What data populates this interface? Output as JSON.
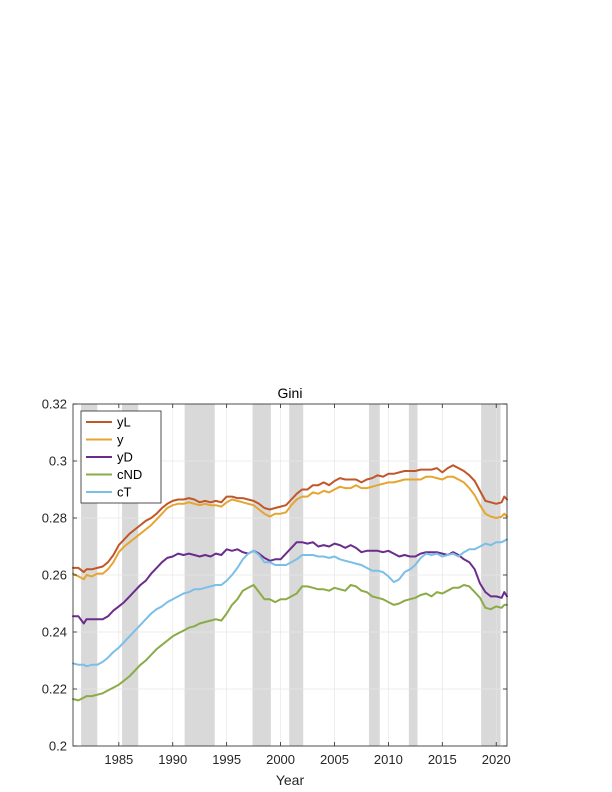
{
  "chart_data": {
    "type": "line",
    "title": "Gini",
    "xlabel": "Year",
    "ylabel": "",
    "xlim": [
      1980.75,
      2021
    ],
    "ylim": [
      0.2,
      0.32
    ],
    "xticks": [
      1985,
      1990,
      1995,
      2000,
      2005,
      2010,
      2015,
      2020
    ],
    "xtick_labels": [
      "1985",
      "1990",
      "1995",
      "2000",
      "2005",
      "2010",
      "2015",
      "2020"
    ],
    "yticks": [
      0.2,
      0.22,
      0.24,
      0.26,
      0.28,
      0.3,
      0.32
    ],
    "ytick_labels": [
      "0.2",
      "0.22",
      "0.24",
      "0.26",
      "0.28",
      "0.3",
      "0.32"
    ],
    "grid": true,
    "legend_position": "top-left",
    "recession_shading_color": "#d9d9d9",
    "recessions": [
      [
        1981.5,
        1983.0
      ],
      [
        1985.3,
        1986.8
      ],
      [
        1991.1,
        1993.9
      ],
      [
        1997.4,
        1999.1
      ],
      [
        2000.8,
        2002.1
      ],
      [
        2008.2,
        2009.2
      ],
      [
        2011.9,
        2012.7
      ],
      [
        2018.6,
        2020.4
      ]
    ],
    "series": [
      {
        "name": "yL",
        "color": "#c0572a",
        "x": [
          1980.75,
          1981.25,
          1981.75,
          1982.0,
          1982.5,
          1983.0,
          1983.5,
          1984.0,
          1984.5,
          1985.0,
          1985.5,
          1986.0,
          1986.5,
          1987.0,
          1987.5,
          1988.0,
          1988.5,
          1989.0,
          1989.5,
          1990.0,
          1990.5,
          1991.0,
          1991.5,
          1992.0,
          1992.5,
          1993.0,
          1993.5,
          1994.0,
          1994.5,
          1995.0,
          1995.5,
          1996.0,
          1996.5,
          1997.0,
          1997.5,
          1998.0,
          1998.5,
          1999.0,
          1999.5,
          2000.0,
          2000.5,
          2001.0,
          2001.5,
          2002.0,
          2002.5,
          2003.0,
          2003.5,
          2004.0,
          2004.5,
          2005.0,
          2005.5,
          2006.0,
          2006.5,
          2007.0,
          2007.5,
          2008.0,
          2008.5,
          2009.0,
          2009.5,
          2010.0,
          2010.5,
          2011.0,
          2011.5,
          2012.0,
          2012.5,
          2013.0,
          2013.5,
          2014.0,
          2014.5,
          2015.0,
          2015.5,
          2016.0,
          2016.5,
          2017.0,
          2017.5,
          2018.0,
          2018.5,
          2019.0,
          2019.5,
          2020.0,
          2020.5,
          2020.75,
          2021.0
        ],
        "values": [
          0.2625,
          0.2625,
          0.261,
          0.262,
          0.262,
          0.2625,
          0.263,
          0.2645,
          0.267,
          0.2705,
          0.2725,
          0.2745,
          0.276,
          0.2775,
          0.279,
          0.28,
          0.2815,
          0.2835,
          0.285,
          0.286,
          0.2865,
          0.2865,
          0.287,
          0.2865,
          0.2855,
          0.286,
          0.2855,
          0.286,
          0.2855,
          0.2875,
          0.2875,
          0.287,
          0.287,
          0.2865,
          0.286,
          0.285,
          0.2835,
          0.283,
          0.2835,
          0.284,
          0.2845,
          0.2865,
          0.2885,
          0.29,
          0.29,
          0.2915,
          0.2915,
          0.2925,
          0.2915,
          0.293,
          0.294,
          0.2935,
          0.2935,
          0.2935,
          0.2925,
          0.2935,
          0.294,
          0.295,
          0.2945,
          0.2955,
          0.2955,
          0.296,
          0.2965,
          0.2965,
          0.2965,
          0.297,
          0.297,
          0.297,
          0.2975,
          0.296,
          0.2975,
          0.2985,
          0.2975,
          0.2965,
          0.295,
          0.293,
          0.2895,
          0.286,
          0.2855,
          0.285,
          0.2855,
          0.2875,
          0.2865
        ]
      },
      {
        "name": "y",
        "color": "#e6a531",
        "x": [
          1980.75,
          1981.25,
          1981.75,
          1982.0,
          1982.5,
          1983.0,
          1983.5,
          1984.0,
          1984.5,
          1985.0,
          1985.5,
          1986.0,
          1986.5,
          1987.0,
          1987.5,
          1988.0,
          1988.5,
          1989.0,
          1989.5,
          1990.0,
          1990.5,
          1991.0,
          1991.5,
          1992.0,
          1992.5,
          1993.0,
          1993.5,
          1994.0,
          1994.5,
          1995.0,
          1995.5,
          1996.0,
          1996.5,
          1997.0,
          1997.5,
          1998.0,
          1998.5,
          1999.0,
          1999.5,
          2000.0,
          2000.5,
          2001.0,
          2001.5,
          2002.0,
          2002.5,
          2003.0,
          2003.5,
          2004.0,
          2004.5,
          2005.0,
          2005.5,
          2006.0,
          2006.5,
          2007.0,
          2007.5,
          2008.0,
          2008.5,
          2009.0,
          2009.5,
          2010.0,
          2010.5,
          2011.0,
          2011.5,
          2012.0,
          2012.5,
          2013.0,
          2013.5,
          2014.0,
          2014.5,
          2015.0,
          2015.5,
          2016.0,
          2016.5,
          2017.0,
          2017.5,
          2018.0,
          2018.5,
          2019.0,
          2019.5,
          2020.0,
          2020.5,
          2020.75,
          2021.0
        ],
        "values": [
          0.2605,
          0.2595,
          0.2585,
          0.26,
          0.2595,
          0.2605,
          0.2605,
          0.262,
          0.2645,
          0.268,
          0.27,
          0.2715,
          0.273,
          0.2745,
          0.276,
          0.2775,
          0.2795,
          0.2815,
          0.2835,
          0.2845,
          0.285,
          0.285,
          0.2855,
          0.285,
          0.2845,
          0.285,
          0.2845,
          0.2845,
          0.284,
          0.2855,
          0.2865,
          0.286,
          0.2855,
          0.285,
          0.2845,
          0.283,
          0.2815,
          0.2805,
          0.2815,
          0.2815,
          0.282,
          0.2845,
          0.2865,
          0.2875,
          0.2875,
          0.289,
          0.2885,
          0.2895,
          0.289,
          0.29,
          0.291,
          0.2905,
          0.2905,
          0.2915,
          0.2905,
          0.2905,
          0.291,
          0.2915,
          0.292,
          0.2925,
          0.2925,
          0.293,
          0.2935,
          0.2935,
          0.2935,
          0.2935,
          0.2945,
          0.2945,
          0.294,
          0.2935,
          0.2945,
          0.2945,
          0.2935,
          0.2925,
          0.2905,
          0.288,
          0.2845,
          0.2815,
          0.2805,
          0.28,
          0.2805,
          0.2815,
          0.2805
        ]
      },
      {
        "name": "yD",
        "color": "#6b2d8b",
        "x": [
          1980.75,
          1981.25,
          1981.75,
          1982.0,
          1982.5,
          1983.0,
          1983.5,
          1984.0,
          1984.5,
          1985.0,
          1985.5,
          1986.0,
          1986.5,
          1987.0,
          1987.5,
          1988.0,
          1988.5,
          1989.0,
          1989.5,
          1990.0,
          1990.5,
          1991.0,
          1991.5,
          1992.0,
          1992.5,
          1993.0,
          1993.5,
          1994.0,
          1994.5,
          1995.0,
          1995.5,
          1996.0,
          1996.5,
          1997.0,
          1997.5,
          1998.0,
          1998.5,
          1999.0,
          1999.5,
          2000.0,
          2000.5,
          2001.0,
          2001.5,
          2002.0,
          2002.5,
          2003.0,
          2003.5,
          2004.0,
          2004.5,
          2005.0,
          2005.5,
          2006.0,
          2006.5,
          2007.0,
          2007.5,
          2008.0,
          2008.5,
          2009.0,
          2009.5,
          2010.0,
          2010.5,
          2011.0,
          2011.5,
          2012.0,
          2012.5,
          2013.0,
          2013.5,
          2014.0,
          2014.5,
          2015.0,
          2015.5,
          2016.0,
          2016.5,
          2017.0,
          2017.5,
          2018.0,
          2018.5,
          2019.0,
          2019.5,
          2020.0,
          2020.5,
          2020.75,
          2021.0
        ],
        "values": [
          0.2455,
          0.2455,
          0.243,
          0.2445,
          0.2445,
          0.2445,
          0.2445,
          0.2455,
          0.2475,
          0.249,
          0.2505,
          0.2525,
          0.2545,
          0.2565,
          0.258,
          0.2605,
          0.2625,
          0.2645,
          0.266,
          0.2665,
          0.2675,
          0.267,
          0.2675,
          0.267,
          0.2665,
          0.267,
          0.2665,
          0.2675,
          0.267,
          0.269,
          0.2685,
          0.269,
          0.268,
          0.2675,
          0.2685,
          0.2675,
          0.266,
          0.265,
          0.2655,
          0.2655,
          0.2675,
          0.2695,
          0.2715,
          0.2715,
          0.271,
          0.2715,
          0.27,
          0.2705,
          0.27,
          0.271,
          0.2705,
          0.2695,
          0.2705,
          0.2695,
          0.268,
          0.2685,
          0.2685,
          0.2685,
          0.268,
          0.2685,
          0.2675,
          0.2665,
          0.267,
          0.2665,
          0.2665,
          0.2675,
          0.268,
          0.268,
          0.268,
          0.2675,
          0.267,
          0.268,
          0.267,
          0.2655,
          0.2645,
          0.262,
          0.257,
          0.254,
          0.2525,
          0.2525,
          0.252,
          0.254,
          0.2525
        ]
      },
      {
        "name": "cND",
        "color": "#8bab47",
        "x": [
          1980.75,
          1981.25,
          1981.75,
          1982.0,
          1982.5,
          1983.0,
          1983.5,
          1984.0,
          1984.5,
          1985.0,
          1985.5,
          1986.0,
          1986.5,
          1987.0,
          1987.5,
          1988.0,
          1988.5,
          1989.0,
          1989.5,
          1990.0,
          1990.5,
          1991.0,
          1991.5,
          1992.0,
          1992.5,
          1993.0,
          1993.5,
          1994.0,
          1994.5,
          1995.0,
          1995.5,
          1996.0,
          1996.5,
          1997.0,
          1997.5,
          1998.0,
          1998.5,
          1999.0,
          1999.5,
          2000.0,
          2000.5,
          2001.0,
          2001.5,
          2002.0,
          2002.5,
          2003.0,
          2003.5,
          2004.0,
          2004.5,
          2005.0,
          2005.5,
          2006.0,
          2006.5,
          2007.0,
          2007.5,
          2008.0,
          2008.5,
          2009.0,
          2009.5,
          2010.0,
          2010.5,
          2011.0,
          2011.5,
          2012.0,
          2012.5,
          2013.0,
          2013.5,
          2014.0,
          2014.5,
          2015.0,
          2015.5,
          2016.0,
          2016.5,
          2017.0,
          2017.5,
          2018.0,
          2018.5,
          2019.0,
          2019.5,
          2020.0,
          2020.5,
          2020.75,
          2021.0
        ],
        "values": [
          0.2165,
          0.216,
          0.217,
          0.2175,
          0.2175,
          0.218,
          0.2185,
          0.2195,
          0.2205,
          0.2215,
          0.223,
          0.2245,
          0.2265,
          0.2285,
          0.23,
          0.232,
          0.234,
          0.2355,
          0.237,
          0.2385,
          0.2395,
          0.2405,
          0.2415,
          0.242,
          0.243,
          0.2435,
          0.244,
          0.2445,
          0.244,
          0.2465,
          0.2495,
          0.2515,
          0.2545,
          0.2555,
          0.2565,
          0.254,
          0.2515,
          0.2515,
          0.2505,
          0.2515,
          0.2515,
          0.2525,
          0.2535,
          0.256,
          0.256,
          0.2555,
          0.255,
          0.255,
          0.2545,
          0.2555,
          0.255,
          0.2545,
          0.2565,
          0.256,
          0.2545,
          0.254,
          0.2525,
          0.252,
          0.2515,
          0.2505,
          0.2495,
          0.25,
          0.251,
          0.2515,
          0.252,
          0.253,
          0.2535,
          0.2525,
          0.254,
          0.2535,
          0.2545,
          0.2555,
          0.2555,
          0.2565,
          0.256,
          0.254,
          0.252,
          0.2485,
          0.248,
          0.249,
          0.2485,
          0.2495,
          0.2495
        ]
      },
      {
        "name": "cT",
        "color": "#7bbfe8",
        "x": [
          1980.75,
          1981.25,
          1981.75,
          1982.0,
          1982.5,
          1983.0,
          1983.5,
          1984.0,
          1984.5,
          1985.0,
          1985.5,
          1986.0,
          1986.5,
          1987.0,
          1987.5,
          1988.0,
          1988.5,
          1989.0,
          1989.5,
          1990.0,
          1990.5,
          1991.0,
          1991.5,
          1992.0,
          1992.5,
          1993.0,
          1993.5,
          1994.0,
          1994.5,
          1995.0,
          1995.5,
          1996.0,
          1996.5,
          1997.0,
          1997.5,
          1998.0,
          1998.5,
          1999.0,
          1999.5,
          2000.0,
          2000.5,
          2001.0,
          2001.5,
          2002.0,
          2002.5,
          2003.0,
          2003.5,
          2004.0,
          2004.5,
          2005.0,
          2005.5,
          2006.0,
          2006.5,
          2007.0,
          2007.5,
          2008.0,
          2008.5,
          2009.0,
          2009.5,
          2010.0,
          2010.5,
          2011.0,
          2011.5,
          2012.0,
          2012.5,
          2013.0,
          2013.5,
          2014.0,
          2014.5,
          2015.0,
          2015.5,
          2016.0,
          2016.5,
          2017.0,
          2017.5,
          2018.0,
          2018.5,
          2019.0,
          2019.5,
          2020.0,
          2020.5,
          2020.75,
          2021.0
        ],
        "values": [
          0.229,
          0.2285,
          0.2285,
          0.228,
          0.2285,
          0.2285,
          0.2295,
          0.231,
          0.233,
          0.2345,
          0.2365,
          0.2385,
          0.2405,
          0.2425,
          0.2445,
          0.2465,
          0.248,
          0.249,
          0.2505,
          0.2515,
          0.2525,
          0.2535,
          0.254,
          0.255,
          0.255,
          0.2555,
          0.256,
          0.2565,
          0.2565,
          0.258,
          0.26,
          0.2625,
          0.2655,
          0.2675,
          0.2685,
          0.267,
          0.2645,
          0.2645,
          0.2635,
          0.2635,
          0.2635,
          0.2645,
          0.2655,
          0.267,
          0.267,
          0.267,
          0.2665,
          0.2665,
          0.266,
          0.2665,
          0.2655,
          0.265,
          0.2645,
          0.264,
          0.2635,
          0.2625,
          0.2615,
          0.2615,
          0.261,
          0.2595,
          0.2575,
          0.2585,
          0.261,
          0.262,
          0.2635,
          0.266,
          0.2675,
          0.267,
          0.2675,
          0.2665,
          0.267,
          0.2675,
          0.2665,
          0.268,
          0.269,
          0.269,
          0.27,
          0.271,
          0.2705,
          0.2715,
          0.2715,
          0.272,
          0.2725
        ]
      }
    ]
  }
}
